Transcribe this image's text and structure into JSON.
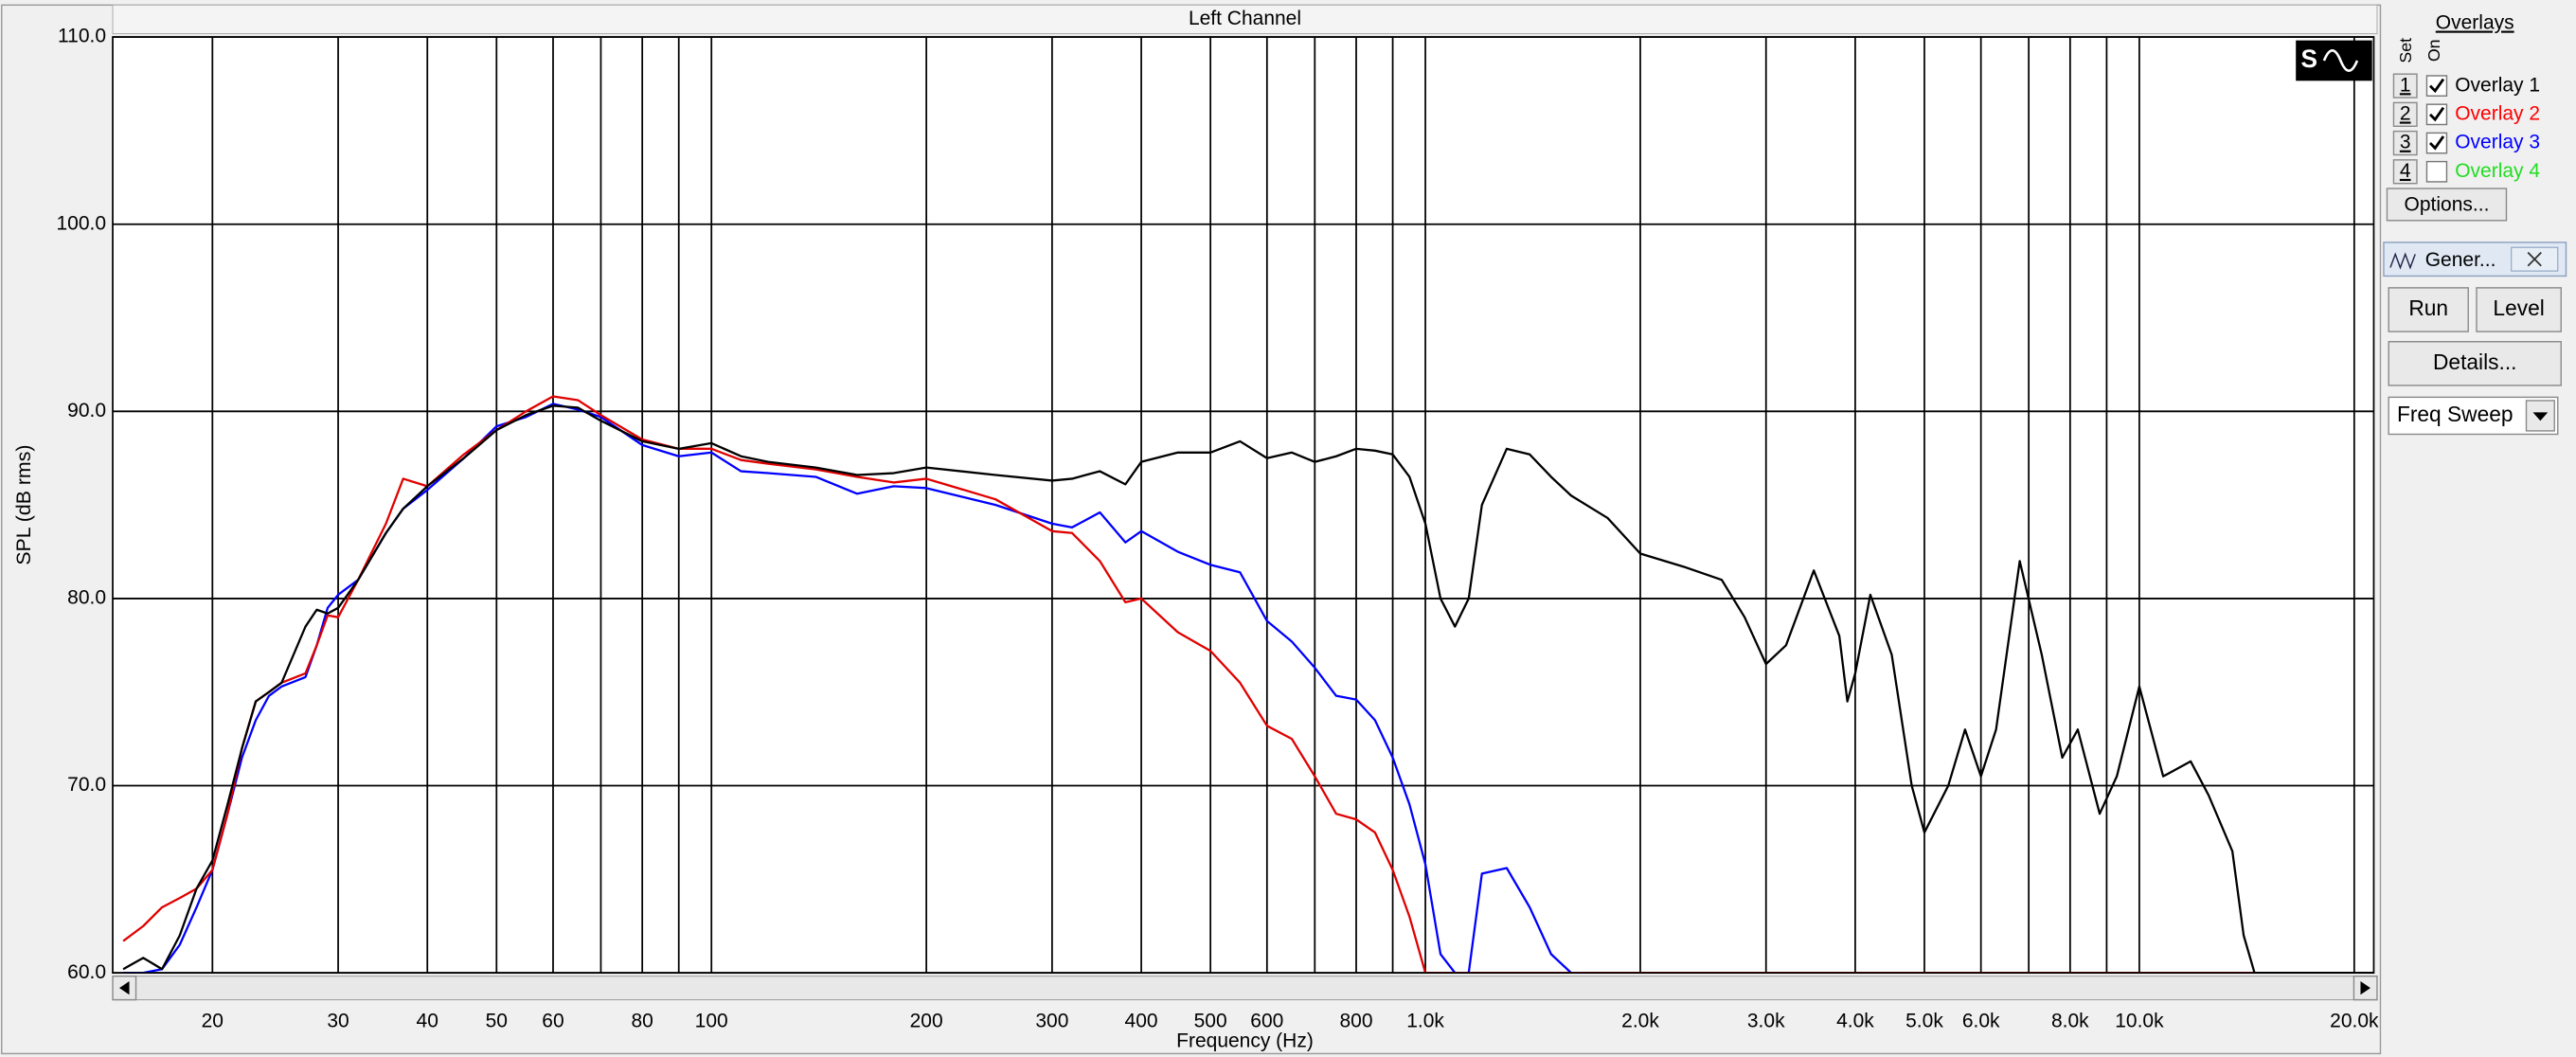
{
  "chart_data": {
    "type": "line",
    "title": "Left Channel",
    "x_label": "Frequency (Hz)",
    "y_label": "SPL (dB rms)",
    "x_scale": "log",
    "grid": true,
    "xlim": [
      14.5,
      21300
    ],
    "ylim": [
      60,
      110
    ],
    "xticks": [
      20,
      30,
      40,
      50,
      60,
      80,
      100,
      200,
      300,
      400,
      500,
      600,
      800,
      {
        "value": 1000,
        "label": "1.0k"
      },
      {
        "value": 2000,
        "label": "2.0k"
      },
      {
        "value": 3000,
        "label": "3.0k"
      },
      {
        "value": 4000,
        "label": "4.0k"
      },
      {
        "value": 5000,
        "label": "5.0k"
      },
      {
        "value": 6000,
        "label": "6.0k"
      },
      {
        "value": 8000,
        "label": "8.0k"
      },
      {
        "value": 10000,
        "label": "10.0k"
      },
      {
        "value": 20000,
        "label": "20.0k"
      }
    ],
    "xgrid_unlabeled": [
      70,
      90,
      700,
      900,
      7000,
      9000
    ],
    "yticks": [
      {
        "value": 60,
        "label": "60.0"
      },
      {
        "value": 70,
        "label": "70.0"
      },
      {
        "value": 80,
        "label": "80.0"
      },
      {
        "value": 90,
        "label": "90.0"
      },
      {
        "value": 100,
        "label": "100.0"
      },
      {
        "value": 110,
        "label": "110.0"
      }
    ],
    "x": [
      15,
      16,
      17,
      18,
      19,
      20,
      21,
      22,
      23,
      24,
      25,
      27,
      28,
      29,
      30,
      32,
      35,
      37,
      40,
      45,
      50,
      55,
      60,
      65,
      70,
      80,
      90,
      100,
      110,
      120,
      140,
      160,
      180,
      200,
      250,
      300,
      320,
      350,
      380,
      400,
      450,
      500,
      550,
      600,
      650,
      700,
      750,
      800,
      850,
      900,
      950,
      1000,
      1050,
      1100,
      1150,
      1200,
      1300,
      1400,
      1500,
      1600,
      1800,
      2000,
      2300,
      2600,
      2800,
      3000,
      3200,
      3500,
      3800,
      3900,
      4000,
      4200,
      4500,
      4800,
      5000,
      5400,
      5700,
      6000,
      6300,
      6800,
      7300,
      7800,
      8200,
      8800,
      9300,
      10000,
      10800,
      11800,
      12500,
      13500,
      14000,
      14500,
      16000,
      20000,
      21300
    ],
    "series": [
      {
        "name": "Overlay 1",
        "set": 1,
        "checked": true,
        "color": "#000000",
        "label_color": "#000000",
        "values": [
          60.2,
          60.8,
          60.2,
          62,
          64.5,
          66,
          69,
          72,
          74.5,
          75,
          75.5,
          78.5,
          79.4,
          79.2,
          79.5,
          81,
          83.5,
          84.8,
          86,
          87.5,
          89,
          89.8,
          90.3,
          90.2,
          89.5,
          88.4,
          88,
          88.3,
          87.6,
          87.3,
          87,
          86.6,
          86.7,
          87,
          86.6,
          86.3,
          86.4,
          86.8,
          86.1,
          87.3,
          87.8,
          87.8,
          88.4,
          87.5,
          87.8,
          87.3,
          87.6,
          88,
          87.9,
          87.7,
          86.5,
          84,
          80,
          78.5,
          80,
          85,
          88,
          87.7,
          86.5,
          85.5,
          84.3,
          82.4,
          81.7,
          81,
          79,
          76.5,
          77.5,
          81.5,
          78,
          74.5,
          76,
          80.2,
          77,
          70,
          67.5,
          70,
          73,
          70.5,
          73,
          82,
          77,
          71.5,
          73,
          68.5,
          70.5,
          75.3,
          70.5,
          71.3,
          69.5,
          66.5,
          62,
          60,
          60,
          60,
          60
        ]
      },
      {
        "name": "Overlay 2",
        "set": 2,
        "checked": true,
        "color": "#e00000",
        "label_color": "#ff0000",
        "values": [
          61.7,
          62.5,
          63.5,
          64,
          64.5,
          65.5,
          68.5,
          72,
          74.5,
          75,
          75.5,
          76,
          77.5,
          79.1,
          79,
          81,
          84,
          86.4,
          86,
          87.7,
          89,
          90,
          90.8,
          90.6,
          89.8,
          88.5,
          88,
          88,
          87.4,
          87.2,
          86.9,
          86.5,
          86.2,
          86.4,
          85.3,
          83.6,
          83.5,
          82,
          79.8,
          80,
          78.2,
          77.2,
          75.5,
          73.2,
          72.5,
          70.5,
          68.5,
          68.2,
          67.5,
          65.5,
          63,
          60,
          60,
          60,
          60,
          60,
          60,
          60,
          60,
          60,
          60,
          60,
          60,
          60,
          60,
          60,
          60,
          60,
          60,
          60,
          60,
          60,
          60,
          60,
          60,
          60,
          60,
          60,
          60,
          60,
          60,
          60,
          60,
          60,
          60,
          60,
          60,
          60,
          60,
          60,
          60,
          60,
          60,
          60,
          60
        ]
      },
      {
        "name": "Overlay 3",
        "set": 3,
        "checked": true,
        "color": "#0000ff",
        "label_color": "#0000ff",
        "values": [
          60,
          60,
          60.2,
          61.5,
          63.5,
          65.5,
          68.5,
          71.5,
          73.5,
          74.8,
          75.3,
          75.8,
          77.5,
          79.5,
          80.2,
          81,
          83.5,
          84.8,
          85.8,
          87.5,
          89.2,
          89.7,
          90.4,
          90.1,
          89.7,
          88.2,
          87.6,
          87.8,
          86.8,
          86.7,
          86.5,
          85.6,
          86,
          85.9,
          85,
          84,
          83.8,
          84.6,
          83,
          83.6,
          82.5,
          81.8,
          81.4,
          78.8,
          77.7,
          76.3,
          74.8,
          74.6,
          73.5,
          71.5,
          69,
          65.8,
          61,
          60,
          60,
          65.3,
          65.6,
          63.5,
          61,
          60,
          60,
          60,
          60,
          60,
          60,
          60,
          60,
          60,
          60,
          60,
          60,
          60,
          60,
          60,
          60,
          60,
          60,
          60,
          60,
          60,
          60,
          60,
          60,
          60,
          60,
          60,
          60,
          60,
          60,
          60,
          60,
          60,
          60,
          60,
          60
        ]
      },
      {
        "name": "Overlay 4",
        "set": 4,
        "checked": false,
        "color": "#00ff00",
        "label_color": "#22dd22",
        "values": [
          null,
          null,
          null,
          null,
          null,
          null,
          null,
          null,
          null,
          null,
          null,
          null,
          null,
          null,
          null,
          null,
          null,
          null,
          null,
          null,
          null,
          null,
          null,
          null,
          null,
          null,
          null,
          null,
          null,
          null,
          null,
          null,
          null,
          null,
          null,
          null,
          null,
          null,
          null,
          null,
          null,
          null,
          null,
          null,
          null,
          null,
          null,
          null,
          null,
          null,
          null,
          null,
          null,
          null,
          null,
          null,
          null,
          null,
          null,
          null,
          null,
          null,
          null,
          null,
          null,
          null,
          null,
          null,
          null,
          null,
          null,
          null,
          null,
          null,
          null,
          null,
          null,
          null,
          null,
          null,
          null,
          null,
          null,
          null,
          null,
          null,
          null,
          null,
          null,
          null,
          null,
          null,
          null,
          null,
          null
        ]
      }
    ]
  },
  "ui": {
    "overlays_title": "Overlays",
    "set_header": "Set",
    "on_header": "On",
    "options_button": "Options...",
    "tab_title": "Gener...",
    "run_button": "Run",
    "level_button": "Level",
    "details_button": "Details...",
    "dropdown": "Freq Sweep"
  }
}
